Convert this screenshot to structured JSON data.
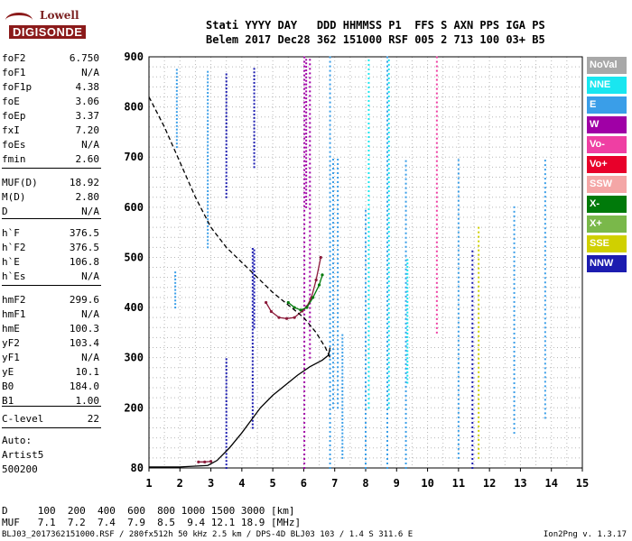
{
  "logo": {
    "line1": "Lowell",
    "line2": "DIGISONDE"
  },
  "header": {
    "line1": "Stati YYYY DAY   DDD HHMMSS P1  FFS S AXN PPS IGA PS",
    "line2": "Belem 2017 Dec28 362 151000 RSF 005 2 713 100 03+ B5"
  },
  "params": [
    {
      "label": "foF2",
      "value": "6.750"
    },
    {
      "label": "foF1",
      "value": "N/A"
    },
    {
      "label": "foF1p",
      "value": "4.38"
    },
    {
      "label": "foE",
      "value": "3.06"
    },
    {
      "label": "foEp",
      "value": "3.37"
    },
    {
      "label": "fxI",
      "value": "7.20"
    },
    {
      "label": "foEs",
      "value": "N/A"
    },
    {
      "label": "fmin",
      "value": "2.60"
    },
    {
      "label": "MUF(D)",
      "value": "18.92"
    },
    {
      "label": "M(D)",
      "value": "2.80"
    },
    {
      "label": "D",
      "value": "N/A"
    },
    {
      "label": "h`F",
      "value": "376.5"
    },
    {
      "label": "h`F2",
      "value": "376.5"
    },
    {
      "label": "h`E",
      "value": "106.8"
    },
    {
      "label": "h`Es",
      "value": "N/A"
    },
    {
      "label": "hmF2",
      "value": "299.6"
    },
    {
      "label": "hmF1",
      "value": "N/A"
    },
    {
      "label": "hmE",
      "value": "100.3"
    },
    {
      "label": "yF2",
      "value": "103.4"
    },
    {
      "label": "yF1",
      "value": "N/A"
    },
    {
      "label": "yE",
      "value": "10.1"
    },
    {
      "label": "B0",
      "value": "184.0"
    },
    {
      "label": "B1",
      "value": "1.00"
    },
    {
      "label": "C-level",
      "value": "22"
    },
    {
      "label": "Auto:",
      "value": ""
    },
    {
      "label": "Artist5",
      "value": ""
    },
    {
      "label": "500200",
      "value": ""
    }
  ],
  "footer": {
    "d_row": "D     100  200  400  600  800 1000 1500 3000 [km]",
    "muf_row": "MUF   7.1  7.2  7.4  7.9  8.5  9.4 12.1 18.9 [MHz]",
    "file_info": "BLJ03_2017362151000.RSF / 280fx512h 50 kHz 2.5 km / DPS-4D BLJ03 103 / 1.4 S 311.6 E",
    "version": "Ion2Png v. 1.3.17"
  },
  "legend": [
    {
      "label": "NoVal",
      "color": "#a8a8a8"
    },
    {
      "label": "NNE",
      "color": "#19e6f0"
    },
    {
      "label": "E",
      "color": "#3a9ee8"
    },
    {
      "label": "W",
      "color": "#a000a6"
    },
    {
      "label": "Vo-",
      "color": "#ef3fa3"
    },
    {
      "label": "Vo+",
      "color": "#e8002a"
    },
    {
      "label": "SSW",
      "color": "#f4a6a6"
    },
    {
      "label": "X-",
      "color": "#007a0a"
    },
    {
      "label": "X+",
      "color": "#7ab84a"
    },
    {
      "label": "SSE",
      "color": "#d0d000"
    },
    {
      "label": "NNW",
      "color": "#1c1cb0"
    }
  ],
  "chart_data": {
    "type": "scatter",
    "xlim": [
      1,
      15
    ],
    "ylim": [
      80,
      900
    ],
    "x_ticks": [
      "1",
      "2",
      "3",
      "4",
      "5",
      "6",
      "7",
      "8",
      "9",
      "10",
      "11",
      "12",
      "13",
      "14",
      "15"
    ],
    "y_ticks": [
      "80",
      "200",
      "300",
      "400",
      "500",
      "600",
      "700",
      "800",
      "900"
    ],
    "grid": true,
    "series": [
      {
        "name": "O-trace",
        "color": "#8b1a3a",
        "x": [
          4.78,
          4.95,
          5.2,
          5.45,
          5.7,
          5.95,
          6.1,
          6.25,
          6.4,
          6.55
        ],
        "y": [
          410,
          392,
          380,
          378,
          380,
          393,
          402,
          420,
          455,
          500
        ]
      },
      {
        "name": "E-trace",
        "color": "#8b1a3a",
        "x": [
          2.6,
          2.8,
          3.0
        ],
        "y": [
          92,
          92,
          93
        ]
      },
      {
        "name": "X-trace",
        "color": "#007a0a",
        "x": [
          5.5,
          5.7,
          5.9,
          6.1,
          6.3,
          6.5,
          6.6
        ],
        "y": [
          410,
          400,
          395,
          400,
          420,
          445,
          465
        ]
      },
      {
        "name": "profile",
        "color": "#000000",
        "x": [
          1.0,
          2.0,
          2.9,
          3.2,
          3.6,
          4.0,
          4.3,
          4.6,
          5.0,
          5.4,
          5.8,
          6.2,
          6.6,
          6.8,
          6.85
        ],
        "y": [
          82,
          82,
          85,
          95,
          120,
          150,
          175,
          200,
          225,
          245,
          265,
          282,
          295,
          305,
          320
        ]
      },
      {
        "name": "topside",
        "color": "#000000",
        "x": [
          1.0,
          1.5,
          2.0,
          2.5,
          3.0,
          3.5,
          4.0,
          4.5,
          5.0,
          5.5,
          6.0,
          6.4,
          6.7,
          6.85
        ],
        "y": [
          820,
          760,
          690,
          620,
          560,
          520,
          490,
          460,
          430,
          405,
          380,
          350,
          320,
          300
        ]
      }
    ]
  }
}
